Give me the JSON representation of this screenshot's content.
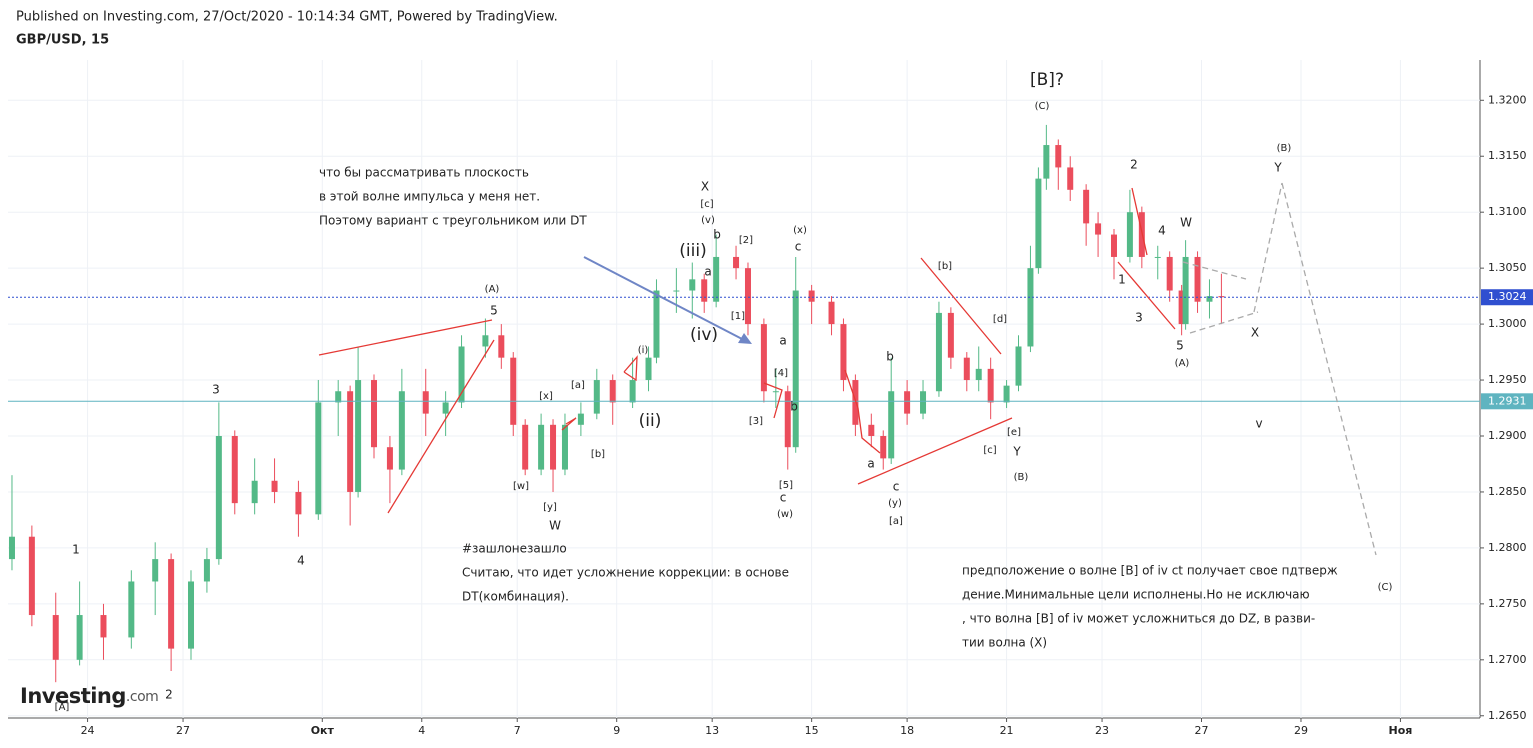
{
  "header": {
    "published": "Published on Investing.com, 27/Oct/2020 - 10:14:34 GMT, Powered by TradingView.",
    "symbol": "GBP/USD, 15"
  },
  "logo": {
    "name": "Investing",
    "suffix": ".com"
  },
  "chart_data": {
    "type": "candlestick",
    "up_color": "#53b987",
    "down_color": "#eb4d5c",
    "x": [
      0.1,
      0.6,
      1.2,
      1.8,
      2.4,
      3.1,
      3.7,
      4.1,
      4.6,
      5.0,
      5.3,
      5.7,
      6.2,
      6.7,
      7.3,
      7.8,
      8.3,
      8.6,
      8.8,
      9.2,
      9.6,
      9.9,
      10.5,
      11.0,
      11.4,
      12.0,
      12.4,
      12.7,
      13.0,
      13.4,
      13.7,
      14.0,
      14.4,
      14.8,
      15.2,
      15.7,
      16.1,
      16.3,
      16.8,
      17.2,
      17.5,
      17.8,
      18.3,
      18.6,
      19.0,
      19.3,
      19.6,
      19.8,
      20.2,
      20.7,
      21.0,
      21.3,
      21.7,
      22.0,
      22.2,
      22.6,
      23.0,
      23.4,
      23.7,
      24.1,
      24.4,
      24.7,
      25.1,
      25.4,
      25.7,
      25.9,
      26.1,
      26.4,
      26.7,
      27.1,
      27.4,
      27.8,
      28.2,
      28.5,
      28.9,
      29.2,
      29.5,
      29.6,
      29.9,
      30.2,
      30.5
    ],
    "open": [
      1.279,
      1.281,
      1.274,
      1.27,
      1.274,
      1.272,
      1.277,
      1.279,
      1.271,
      1.277,
      1.279,
      1.29,
      1.284,
      1.286,
      1.285,
      1.283,
      1.293,
      1.294,
      1.285,
      1.295,
      1.289,
      1.287,
      1.294,
      1.292,
      1.293,
      1.298,
      1.299,
      1.297,
      1.291,
      1.287,
      1.291,
      1.287,
      1.291,
      1.292,
      1.295,
      1.293,
      1.295,
      1.297,
      1.303,
      1.303,
      1.304,
      1.302,
      1.306,
      1.305,
      1.3,
      1.294,
      1.294,
      1.289,
      1.303,
      1.302,
      1.3,
      1.295,
      1.291,
      1.29,
      1.288,
      1.294,
      1.292,
      1.294,
      1.301,
      1.297,
      1.295,
      1.296,
      1.293,
      1.2945,
      1.298,
      1.305,
      1.313,
      1.316,
      1.314,
      1.312,
      1.309,
      1.308,
      1.306,
      1.31,
      1.306,
      1.306,
      1.303,
      1.3,
      1.306,
      1.302,
      1.3025
    ],
    "high": [
      1.2865,
      1.282,
      1.276,
      1.277,
      1.275,
      1.278,
      1.2805,
      1.2795,
      1.278,
      1.28,
      1.293,
      1.2905,
      1.288,
      1.288,
      1.286,
      1.295,
      1.295,
      1.2945,
      1.298,
      1.2955,
      1.29,
      1.296,
      1.296,
      1.294,
      1.299,
      1.3005,
      1.3,
      1.2975,
      1.2915,
      1.292,
      1.2915,
      1.292,
      1.293,
      1.296,
      1.2955,
      1.297,
      1.298,
      1.304,
      1.305,
      1.3055,
      1.3045,
      1.308,
      1.307,
      1.3055,
      1.3005,
      1.296,
      1.2945,
      1.306,
      1.3035,
      1.3025,
      1.3005,
      1.2955,
      1.292,
      1.2905,
      1.297,
      1.295,
      1.295,
      1.302,
      1.3015,
      1.2975,
      1.298,
      1.297,
      1.295,
      1.299,
      1.307,
      1.314,
      1.3178,
      1.3165,
      1.315,
      1.3125,
      1.31,
      1.3085,
      1.312,
      1.3105,
      1.307,
      1.3065,
      1.3035,
      1.3075,
      1.3065,
      1.304,
      1.3045
    ],
    "low": [
      1.278,
      1.273,
      1.268,
      1.2695,
      1.27,
      1.271,
      1.274,
      1.269,
      1.27,
      1.276,
      1.2785,
      1.283,
      1.283,
      1.284,
      1.281,
      1.2825,
      1.29,
      1.282,
      1.2845,
      1.288,
      1.284,
      1.2865,
      1.29,
      1.29,
      1.2925,
      1.297,
      1.296,
      1.29,
      1.2865,
      1.2865,
      1.285,
      1.2865,
      1.29,
      1.2915,
      1.291,
      1.2925,
      1.294,
      1.2965,
      1.301,
      1.3005,
      1.301,
      1.3015,
      1.304,
      1.299,
      1.293,
      1.2925,
      1.287,
      1.2885,
      1.3,
      1.299,
      1.294,
      1.29,
      1.289,
      1.287,
      1.2875,
      1.291,
      1.2915,
      1.2935,
      1.296,
      1.294,
      1.294,
      1.2915,
      1.2925,
      1.294,
      1.2975,
      1.3045,
      1.312,
      1.312,
      1.311,
      1.307,
      1.306,
      1.304,
      1.3055,
      1.305,
      1.304,
      1.302,
      1.299,
      1.2995,
      1.301,
      1.3005,
      1.3
    ],
    "close": [
      1.281,
      1.274,
      1.27,
      1.274,
      1.272,
      1.277,
      1.279,
      1.271,
      1.277,
      1.279,
      1.29,
      1.284,
      1.286,
      1.285,
      1.283,
      1.293,
      1.294,
      1.285,
      1.295,
      1.289,
      1.287,
      1.294,
      1.292,
      1.293,
      1.298,
      1.299,
      1.297,
      1.291,
      1.287,
      1.291,
      1.287,
      1.291,
      1.292,
      1.295,
      1.293,
      1.295,
      1.297,
      1.303,
      1.303,
      1.304,
      1.302,
      1.306,
      1.305,
      1.3,
      1.294,
      1.294,
      1.289,
      1.303,
      1.302,
      1.3,
      1.295,
      1.291,
      1.29,
      1.288,
      1.294,
      1.292,
      1.294,
      1.301,
      1.297,
      1.295,
      1.296,
      1.293,
      1.2945,
      1.298,
      1.305,
      1.313,
      1.316,
      1.314,
      1.312,
      1.309,
      1.308,
      1.306,
      1.31,
      1.306,
      1.306,
      1.303,
      1.3,
      1.306,
      1.302,
      1.3025,
      1.3024
    ],
    "xlim": [
      0,
      37
    ],
    "xticks": [
      {
        "value": 2.0,
        "label": "24"
      },
      {
        "value": 4.4,
        "label": "27"
      },
      {
        "value": 7.9,
        "label": "Окт"
      },
      {
        "value": 10.4,
        "label": "4"
      },
      {
        "value": 12.8,
        "label": "7"
      },
      {
        "value": 15.3,
        "label": "9"
      },
      {
        "value": 17.7,
        "label": "13"
      },
      {
        "value": 20.2,
        "label": "15"
      },
      {
        "value": 22.6,
        "label": "18"
      },
      {
        "value": 25.1,
        "label": "21"
      },
      {
        "value": 27.5,
        "label": "23"
      },
      {
        "value": 30.0,
        "label": "27"
      },
      {
        "value": 32.5,
        "label": "29"
      },
      {
        "value": 35.0,
        "label": "Ноя"
      }
    ],
    "ylim": [
      1.2648,
      1.3236
    ],
    "yticks": [
      {
        "value": 1.265,
        "label": "1.2650"
      },
      {
        "value": 1.27,
        "label": "1.2700"
      },
      {
        "value": 1.275,
        "label": "1.2750"
      },
      {
        "value": 1.28,
        "label": "1.2800"
      },
      {
        "value": 1.285,
        "label": "1.2850"
      },
      {
        "value": 1.29,
        "label": "1.2900"
      },
      {
        "value": 1.295,
        "label": "1.2950"
      },
      {
        "value": 1.3,
        "label": "1.3000"
      },
      {
        "value": 1.305,
        "label": "1.3050"
      },
      {
        "value": 1.31,
        "label": "1.3100"
      },
      {
        "value": 1.315,
        "label": "1.3150"
      },
      {
        "value": 1.32,
        "label": "1.3200"
      }
    ],
    "grid": true,
    "price_lines": [
      {
        "value": 1.3024,
        "color": "#2f4fd0",
        "dashed": true
      },
      {
        "value": 1.2931,
        "color": "#5fb4c0",
        "dashed": false
      }
    ],
    "annotations": [
      "[A]",
      "1",
      "2",
      "3",
      "4",
      "5",
      "(A)",
      "[w]",
      "[x]",
      "[y]",
      "W",
      "[a]",
      "[b]",
      "(i)",
      "(ii)",
      "(iii)",
      "(iv)",
      "(v)",
      "[c]",
      "X",
      "b",
      "a",
      "[2]",
      "[1]",
      "a",
      "[4]",
      "b",
      "[3]",
      "[5]",
      "c",
      "(w)",
      "(x)",
      "c",
      "b",
      "a",
      "c",
      "(y)",
      "[a]",
      "[b]",
      "[d]",
      "[e]",
      "[c]",
      "Y",
      "(B)",
      "[B]?",
      "(C)",
      "2",
      "4",
      "W",
      "1",
      "3",
      "5",
      "(A)",
      "X",
      "(B)",
      "Y",
      "v",
      "(C)"
    ],
    "notes": [
      [
        "что бы рассматривать плоскость",
        "в этой волне импульса у меня нет.",
        "Поэтому вариант с треугольником или DT"
      ],
      [
        "#зашлонезашло",
        "Считаю, что идет усложнение коррекции: в основе",
        "DT(комбинация)."
      ],
      [
        "предположение о волне [B] of iv ct  получает свое пдтверж",
        "дение.Минимальные цели исполнены.Но не исключаю",
        ", что волна [B] of iv  может усложниться до DZ, в разви-",
        "тии волна (X)"
      ]
    ]
  }
}
